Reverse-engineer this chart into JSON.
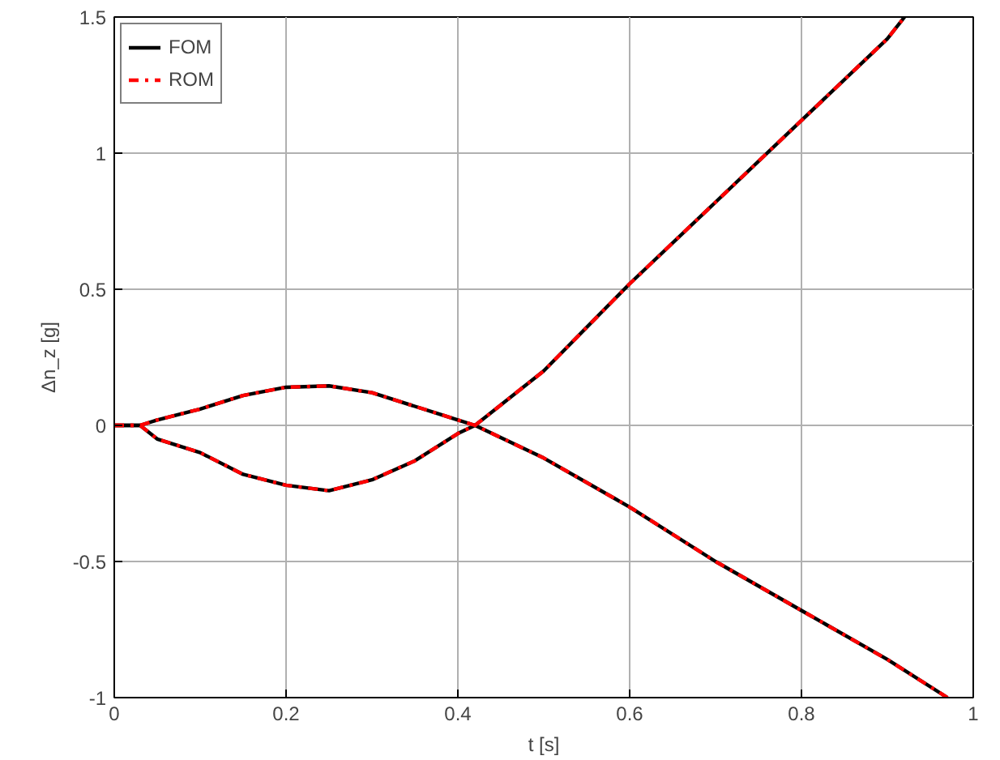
{
  "chart_data": {
    "type": "line",
    "xlabel": "t [s]",
    "ylabel": "Δn_z [g]",
    "xlim": [
      0,
      1
    ],
    "ylim": [
      -1,
      1.5
    ],
    "xticks": [
      0,
      0.2,
      0.4,
      0.6,
      0.8,
      1
    ],
    "yticks": [
      -1,
      -0.5,
      0,
      0.5,
      1,
      1.5
    ],
    "grid": true,
    "legend": "top left",
    "marker": "none",
    "series": [
      {
        "name": "FOM",
        "color": "#000000",
        "line_style": "solid",
        "x": [
          0,
          0.03,
          0.05,
          0.1,
          0.15,
          0.2,
          0.25,
          0.3,
          0.35,
          0.4,
          0.42,
          0.5,
          0.6,
          0.7,
          0.8,
          0.9,
          0.97
        ],
        "values": [
          0,
          0,
          0.02,
          0.06,
          0.11,
          0.14,
          0.145,
          0.12,
          0.07,
          0.02,
          0,
          -0.12,
          -0.3,
          -0.5,
          -0.68,
          -0.86,
          -1.0
        ]
      },
      {
        "color": "#000000",
        "line_style": "solid",
        "x": [
          0,
          0.03,
          0.05,
          0.1,
          0.15,
          0.2,
          0.25,
          0.3,
          0.35,
          0.4,
          0.42,
          0.5,
          0.6,
          0.7,
          0.8,
          0.9,
          0.92
        ],
        "values": [
          0,
          0,
          -0.05,
          -0.1,
          -0.18,
          -0.22,
          -0.24,
          -0.2,
          -0.13,
          -0.03,
          0,
          0.2,
          0.52,
          0.82,
          1.12,
          1.42,
          1.5
        ]
      },
      {
        "name": "ROM",
        "color": "#ff0000",
        "line_style": "dashdot",
        "x": [
          0,
          0.03,
          0.05,
          0.1,
          0.15,
          0.2,
          0.25,
          0.3,
          0.35,
          0.4,
          0.42,
          0.5,
          0.6,
          0.7,
          0.8,
          0.9,
          0.97
        ],
        "values": [
          0,
          0,
          0.02,
          0.06,
          0.11,
          0.14,
          0.145,
          0.12,
          0.07,
          0.02,
          0,
          -0.12,
          -0.3,
          -0.5,
          -0.68,
          -0.86,
          -1.0
        ]
      },
      {
        "color": "#ff0000",
        "line_style": "dashdot",
        "x": [
          0,
          0.03,
          0.05,
          0.1,
          0.15,
          0.2,
          0.25,
          0.3,
          0.35,
          0.4,
          0.42,
          0.5,
          0.6,
          0.7,
          0.8,
          0.9,
          0.92
        ],
        "values": [
          0,
          0,
          -0.05,
          -0.1,
          -0.18,
          -0.22,
          -0.24,
          -0.2,
          -0.13,
          -0.03,
          0,
          0.2,
          0.52,
          0.82,
          1.12,
          1.42,
          1.5
        ]
      }
    ]
  }
}
